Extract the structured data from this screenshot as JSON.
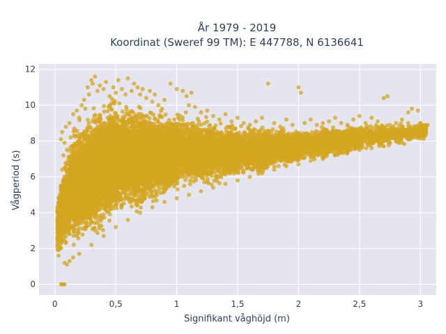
{
  "chart_data": {
    "type": "scatter",
    "title_line1": "År 1979 - 2019",
    "title_line2": "Koordinat (Sweref 99 TM): E 447788, N 6136641",
    "xlabel": "Signifikant våghöjd (m)",
    "ylabel": "Vågperiod (s)",
    "xlim": [
      -0.13,
      3.13
    ],
    "ylim": [
      -0.6,
      12.3
    ],
    "x_ticks": [
      {
        "value": 0,
        "label": "0"
      },
      {
        "value": 0.5,
        "label": "0,5"
      },
      {
        "value": 1,
        "label": "1"
      },
      {
        "value": 1.5,
        "label": "1,5"
      },
      {
        "value": 2,
        "label": "2"
      },
      {
        "value": 2.5,
        "label": "2,5"
      },
      {
        "value": 3,
        "label": "3"
      }
    ],
    "y_ticks": [
      {
        "value": 0,
        "label": "0"
      },
      {
        "value": 2,
        "label": "2"
      },
      {
        "value": 4,
        "label": "4"
      },
      {
        "value": 6,
        "label": "6"
      },
      {
        "value": 8,
        "label": "8"
      },
      {
        "value": 10,
        "label": "10"
      },
      {
        "value": 12,
        "label": "12"
      }
    ],
    "grid": true,
    "marker_color": "#D4A520",
    "plot_bg": "#E5E5F0",
    "grid_color": "#ffffff",
    "points": [
      [
        0.05,
        0.0
      ],
      [
        0.06,
        0.0
      ],
      [
        0.07,
        0.0
      ],
      [
        0.08,
        0.0
      ],
      [
        0.03,
        1.6
      ],
      [
        0.05,
        2.3
      ],
      [
        0.08,
        1.2
      ],
      [
        0.1,
        1.1
      ],
      [
        0.12,
        1.3
      ],
      [
        0.04,
        3.0
      ],
      [
        0.06,
        4.2
      ],
      [
        0.05,
        5.5
      ],
      [
        0.06,
        6.4
      ],
      [
        0.07,
        7.2
      ],
      [
        0.05,
        8.1
      ],
      [
        0.06,
        8.5
      ],
      [
        0.08,
        7.9
      ],
      [
        0.09,
        8.8
      ],
      [
        0.1,
        7.5
      ],
      [
        0.12,
        9.0
      ],
      [
        0.13,
        8.2
      ],
      [
        0.15,
        9.5
      ],
      [
        0.16,
        8.7
      ],
      [
        0.18,
        9.7
      ],
      [
        0.2,
        9.3
      ],
      [
        0.22,
        10.0
      ],
      [
        0.24,
        10.3
      ],
      [
        0.25,
        9.8
      ],
      [
        0.27,
        11.0
      ],
      [
        0.28,
        10.6
      ],
      [
        0.3,
        11.4
      ],
      [
        0.31,
        11.2
      ],
      [
        0.33,
        11.6
      ],
      [
        0.35,
        10.8
      ],
      [
        0.37,
        11.1
      ],
      [
        0.4,
        10.9
      ],
      [
        0.42,
        11.3
      ],
      [
        0.45,
        10.5
      ],
      [
        0.48,
        11.0
      ],
      [
        0.5,
        10.7
      ],
      [
        0.52,
        11.4
      ],
      [
        0.55,
        10.9
      ],
      [
        0.58,
        10.6
      ],
      [
        0.6,
        11.5
      ],
      [
        0.63,
        10.8
      ],
      [
        0.65,
        11.2
      ],
      [
        0.68,
        11.0
      ],
      [
        0.7,
        10.6
      ],
      [
        0.72,
        10.9
      ],
      [
        0.75,
        10.4
      ],
      [
        0.78,
        10.8
      ],
      [
        0.8,
        10.2
      ],
      [
        0.82,
        10.6
      ],
      [
        0.85,
        10.0
      ],
      [
        0.88,
        9.8
      ],
      [
        0.9,
        10.3
      ],
      [
        0.95,
        11.2
      ],
      [
        1.0,
        10.9
      ],
      [
        1.05,
        10.8
      ],
      [
        1.08,
        10.5
      ],
      [
        1.1,
        10.0
      ],
      [
        1.12,
        10.7
      ],
      [
        1.15,
        9.9
      ],
      [
        1.2,
        9.6
      ],
      [
        1.25,
        9.7
      ],
      [
        1.3,
        9.4
      ],
      [
        1.35,
        9.2
      ],
      [
        1.4,
        9.5
      ],
      [
        1.45,
        9.1
      ],
      [
        1.5,
        9.3
      ],
      [
        1.55,
        9.0
      ],
      [
        1.6,
        8.9
      ],
      [
        1.65,
        9.1
      ],
      [
        1.7,
        9.3
      ],
      [
        1.75,
        11.2
      ],
      [
        1.8,
        9.0
      ],
      [
        1.85,
        8.8
      ],
      [
        1.9,
        9.2
      ],
      [
        1.95,
        8.9
      ],
      [
        2.0,
        11.0
      ],
      [
        2.02,
        10.7
      ],
      [
        2.05,
        9.0
      ],
      [
        2.1,
        9.2
      ],
      [
        2.15,
        8.9
      ],
      [
        2.2,
        9.0
      ],
      [
        2.25,
        9.1
      ],
      [
        2.3,
        9.3
      ],
      [
        2.35,
        9.0
      ],
      [
        2.4,
        8.9
      ],
      [
        2.45,
        9.2
      ],
      [
        2.5,
        9.4
      ],
      [
        2.55,
        9.0
      ],
      [
        2.6,
        9.3
      ],
      [
        2.65,
        9.1
      ],
      [
        2.7,
        10.4
      ],
      [
        2.73,
        10.5
      ],
      [
        2.75,
        8.9
      ],
      [
        2.8,
        9.0
      ],
      [
        2.85,
        9.2
      ],
      [
        2.9,
        9.6
      ],
      [
        2.93,
        9.8
      ],
      [
        2.95,
        8.6
      ],
      [
        2.98,
        9.7
      ],
      [
        3.0,
        9.0
      ],
      [
        3.03,
        8.3
      ],
      [
        3.06,
        8.9
      ],
      [
        2.7,
        7.7
      ],
      [
        2.75,
        7.9
      ],
      [
        2.8,
        8.0
      ],
      [
        2.85,
        7.9
      ],
      [
        2.9,
        8.1
      ],
      [
        2.95,
        8.2
      ],
      [
        3.0,
        8.3
      ],
      [
        2.6,
        7.6
      ],
      [
        2.5,
        7.5
      ],
      [
        2.4,
        7.3
      ],
      [
        2.3,
        7.2
      ],
      [
        2.2,
        7.0
      ],
      [
        2.1,
        6.9
      ],
      [
        2.0,
        6.7
      ],
      [
        1.9,
        6.6
      ],
      [
        1.8,
        6.4
      ],
      [
        1.7,
        6.2
      ],
      [
        1.6,
        6.0
      ],
      [
        1.5,
        5.8
      ],
      [
        1.4,
        5.6
      ],
      [
        1.3,
        5.4
      ],
      [
        1.2,
        5.2
      ],
      [
        1.1,
        5.0
      ],
      [
        1.0,
        4.8
      ],
      [
        0.9,
        4.6
      ],
      [
        0.8,
        4.3
      ],
      [
        0.7,
        4.0
      ],
      [
        0.6,
        3.6
      ],
      [
        0.5,
        3.2
      ],
      [
        0.4,
        2.7
      ],
      [
        0.3,
        2.2
      ],
      [
        0.2,
        1.7
      ],
      [
        0.15,
        1.5
      ]
    ],
    "bands": [
      {
        "x_from": 0.02,
        "x_to": 0.15,
        "y_low": [
          1.3,
          2.5
        ],
        "y_high": [
          5.0,
          9.0
        ],
        "count": 900
      },
      {
        "x_from": 0.15,
        "x_to": 0.5,
        "y_low": [
          1.6,
          3.3
        ],
        "y_high": [
          9.0,
          11.0
        ],
        "count": 3000
      },
      {
        "x_from": 0.5,
        "x_to": 1.0,
        "y_low": [
          3.3,
          4.9
        ],
        "y_high": [
          10.5,
          9.8
        ],
        "count": 3200
      },
      {
        "x_from": 1.0,
        "x_to": 1.5,
        "y_low": [
          4.9,
          5.8
        ],
        "y_high": [
          9.8,
          9.0
        ],
        "count": 2000
      },
      {
        "x_from": 1.5,
        "x_to": 2.0,
        "y_low": [
          5.8,
          6.6
        ],
        "y_high": [
          9.0,
          8.8
        ],
        "count": 1500
      },
      {
        "x_from": 2.0,
        "x_to": 2.5,
        "y_low": [
          6.6,
          7.3
        ],
        "y_high": [
          8.8,
          9.0
        ],
        "count": 1000
      },
      {
        "x_from": 2.5,
        "x_to": 3.05,
        "y_low": [
          7.3,
          8.0
        ],
        "y_high": [
          9.0,
          9.2
        ],
        "count": 500
      }
    ]
  }
}
